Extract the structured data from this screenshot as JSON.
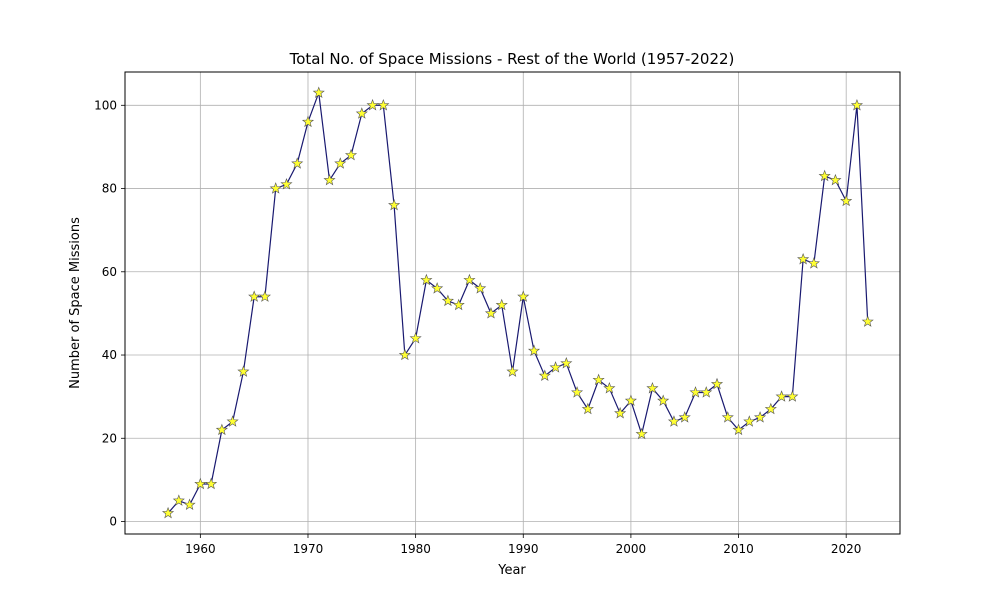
{
  "chart_data": {
    "type": "line",
    "title": "Total No. of Space Missions - Rest of the World (1957-2022)",
    "xlabel": "Year",
    "ylabel": "Number of Space Missions",
    "xlim": [
      1953,
      2025
    ],
    "ylim": [
      -3,
      108
    ],
    "xticks": [
      1960,
      1970,
      1980,
      1990,
      2000,
      2010,
      2020
    ],
    "yticks": [
      0,
      20,
      40,
      60,
      80,
      100
    ],
    "grid": true,
    "line_color": "#191970",
    "marker": "star",
    "marker_color": "#ffff33",
    "marker_edge_color": "#555555",
    "series": [
      {
        "x": [
          1957,
          1958,
          1959,
          1960,
          1961,
          1962,
          1963,
          1964,
          1965,
          1966,
          1967,
          1968,
          1969,
          1970,
          1971,
          1972,
          1973,
          1974,
          1975,
          1976,
          1977,
          1978,
          1979,
          1980,
          1981,
          1982,
          1983,
          1984,
          1985,
          1986,
          1987,
          1988,
          1989,
          1990,
          1991,
          1992,
          1993,
          1994,
          1995,
          1996,
          1997,
          1998,
          1999,
          2000,
          2001,
          2002,
          2003,
          2004,
          2005,
          2006,
          2007,
          2008,
          2009,
          2010,
          2011,
          2012,
          2013,
          2014,
          2015,
          2016,
          2017,
          2018,
          2019,
          2020,
          2021,
          2022
        ],
        "values": [
          2,
          5,
          4,
          9,
          9,
          22,
          24,
          36,
          54,
          54,
          80,
          81,
          86,
          96,
          103,
          82,
          86,
          88,
          98,
          100,
          100,
          76,
          40,
          44,
          58,
          56,
          53,
          52,
          58,
          56,
          50,
          52,
          36,
          54,
          41,
          35,
          37,
          38,
          31,
          27,
          34,
          32,
          26,
          29,
          21,
          32,
          29,
          24,
          25,
          31,
          31,
          33,
          25,
          22,
          24,
          25,
          27,
          30,
          30,
          63,
          62,
          83,
          82,
          77,
          100,
          48
        ]
      }
    ]
  }
}
